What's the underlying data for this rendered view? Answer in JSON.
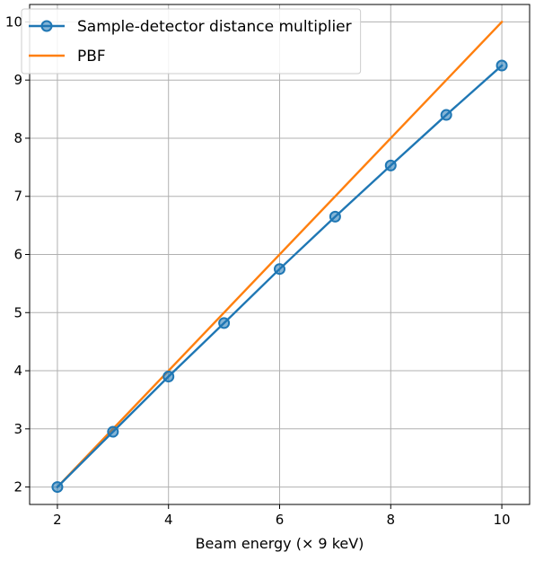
{
  "chart_data": {
    "type": "line",
    "title": "",
    "xlabel": "Beam energy (× 9 keV)",
    "ylabel": "",
    "xlim": [
      1.5,
      10.5
    ],
    "ylim": [
      1.7,
      10.3
    ],
    "x_ticks": [
      "2",
      "4",
      "6",
      "8",
      "10"
    ],
    "y_ticks": [
      "2",
      "3",
      "4",
      "5",
      "6",
      "7",
      "8",
      "9",
      "10"
    ],
    "grid": true,
    "legend_position": "upper-left",
    "series": [
      {
        "name": "Sample-detector distance multiplier",
        "color": "#1f77b4",
        "marker": "circle",
        "x": [
          2,
          3,
          4,
          5,
          6,
          7,
          8,
          9,
          10
        ],
        "y": [
          2.0,
          2.95,
          3.9,
          4.82,
          5.75,
          6.65,
          7.53,
          8.4,
          9.25
        ]
      },
      {
        "name": "PBF",
        "color": "#ff7f0e",
        "marker": "none",
        "x": [
          2,
          10
        ],
        "y": [
          2,
          10
        ]
      }
    ]
  }
}
